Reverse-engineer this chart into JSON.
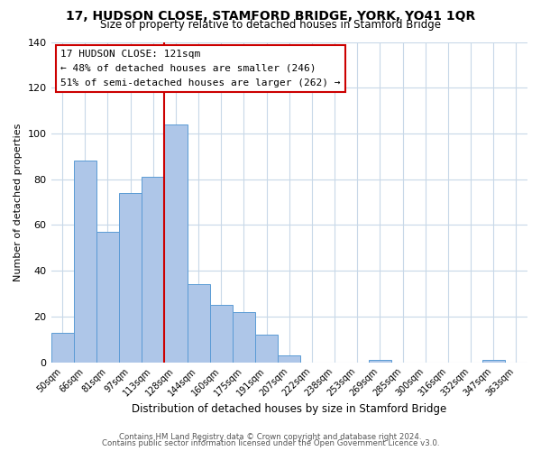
{
  "title": "17, HUDSON CLOSE, STAMFORD BRIDGE, YORK, YO41 1QR",
  "subtitle": "Size of property relative to detached houses in Stamford Bridge",
  "xlabel": "Distribution of detached houses by size in Stamford Bridge",
  "ylabel": "Number of detached properties",
  "bin_labels": [
    "50sqm",
    "66sqm",
    "81sqm",
    "97sqm",
    "113sqm",
    "128sqm",
    "144sqm",
    "160sqm",
    "175sqm",
    "191sqm",
    "207sqm",
    "222sqm",
    "238sqm",
    "253sqm",
    "269sqm",
    "285sqm",
    "300sqm",
    "316sqm",
    "332sqm",
    "347sqm",
    "363sqm"
  ],
  "bar_heights": [
    13,
    88,
    57,
    74,
    81,
    104,
    34,
    25,
    22,
    12,
    3,
    0,
    0,
    0,
    1,
    0,
    0,
    0,
    0,
    1,
    0
  ],
  "bar_color": "#aec6e8",
  "bar_edge_color": "#5b9bd5",
  "vline_color": "#cc0000",
  "ylim": [
    0,
    140
  ],
  "yticks": [
    0,
    20,
    40,
    60,
    80,
    100,
    120,
    140
  ],
  "annotation_title": "17 HUDSON CLOSE: 121sqm",
  "annotation_line1": "← 48% of detached houses are smaller (246)",
  "annotation_line2": "51% of semi-detached houses are larger (262) →",
  "footer_line1": "Contains HM Land Registry data © Crown copyright and database right 2024.",
  "footer_line2": "Contains public sector information licensed under the Open Government Licence v3.0.",
  "background_color": "#ffffff",
  "grid_color": "#c8d8e8"
}
